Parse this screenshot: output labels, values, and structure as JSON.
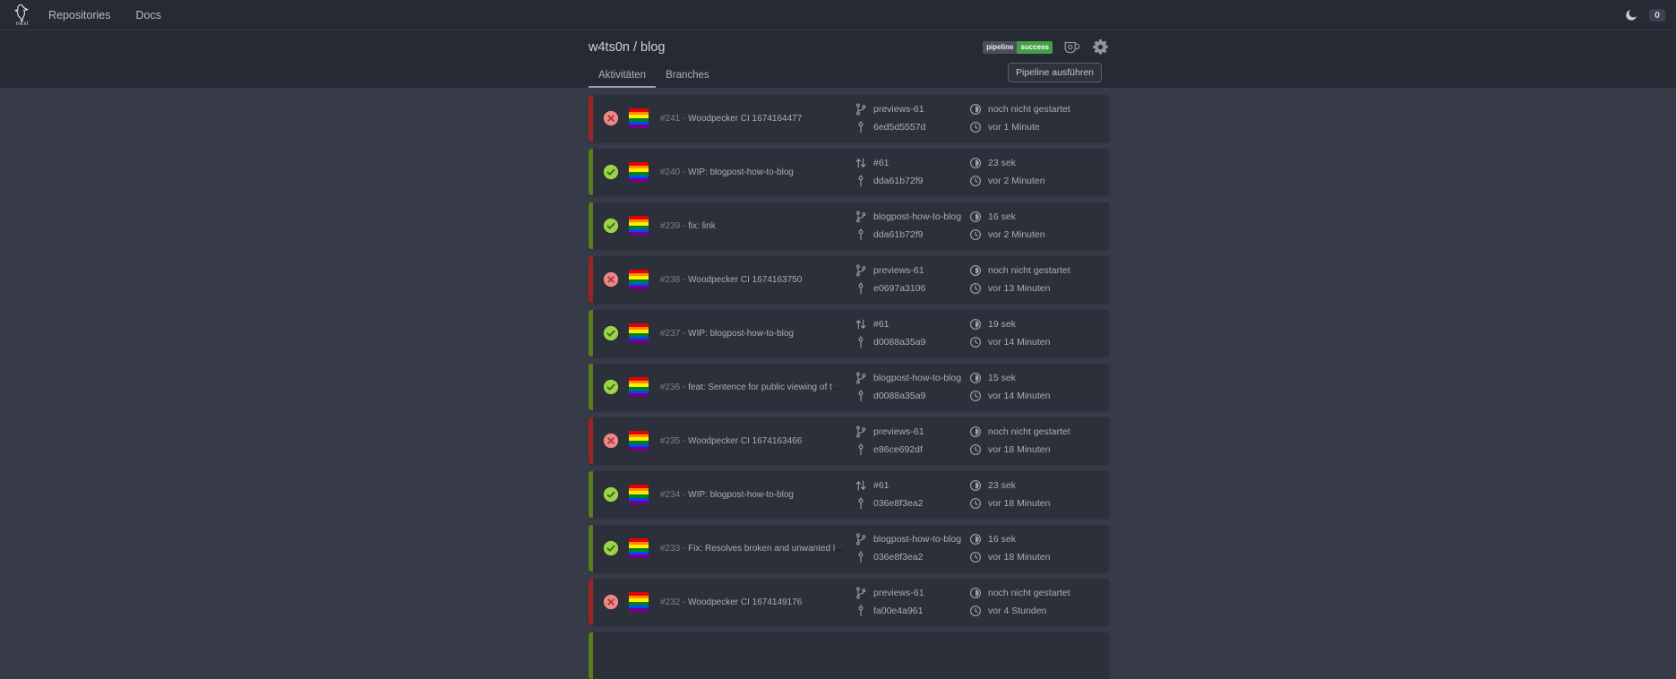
{
  "navbar": {
    "logo_caption": "next",
    "links": [
      {
        "label": "Repositories"
      },
      {
        "label": "Docs"
      }
    ],
    "notification_count": "0"
  },
  "header": {
    "repo_title": "w4ts0n / blog",
    "badge": {
      "label": "pipeline",
      "status": "success"
    },
    "tabs": [
      {
        "label": "Aktivitäten",
        "active": true
      },
      {
        "label": "Branches",
        "active": false
      }
    ],
    "run_button": "Pipeline ausführen"
  },
  "list": {
    "separator": "-"
  },
  "flag_colors": [
    "#e40303",
    "#ff8c00",
    "#ffed00",
    "#008026",
    "#0048ff",
    "#770088"
  ],
  "colors": {
    "navbar_bg": "#262a35",
    "header_bg": "#262a35",
    "content_bg": "#363b47",
    "card_bg": "#2c303b",
    "success_border": "#5a7d1e",
    "failure_border": "#9b2424",
    "success_icon_bg": "#9bd447",
    "success_icon_fg": "#3c6e15",
    "failure_icon_bg": "#ee8787",
    "failure_icon_fg": "#a73d3d",
    "badge_label_bg": "#4a4f59",
    "badge_status_bg": "#43a047",
    "accent_text": "#a8adb6",
    "muted_text": "#7a808c",
    "tab_underline": "#95a1a9"
  },
  "pipelines": [
    {
      "number": "#241",
      "status": "failure",
      "message": "Woodpecker CI 1674164477",
      "ref": "previews-61",
      "ref_type": "branch",
      "commit": "6ed5d5557d",
      "duration": "noch nicht gestartet",
      "time": "vor 1 Minute"
    },
    {
      "number": "#240",
      "status": "success",
      "message": "WIP: blogpost-how-to-blog",
      "ref": "#61",
      "ref_type": "pull_request",
      "commit": "dda61b72f9",
      "duration": "23 sek",
      "time": "vor 2 Minuten"
    },
    {
      "number": "#239",
      "status": "success",
      "message": "fix: link",
      "ref": "blogpost-how-to-blog",
      "ref_type": "branch",
      "commit": "dda61b72f9",
      "duration": "16 sek",
      "time": "vor 2 Minuten"
    },
    {
      "number": "#238",
      "status": "failure",
      "message": "Woodpecker CI 1674163750",
      "ref": "previews-61",
      "ref_type": "branch",
      "commit": "e0697a3106",
      "duration": "noch nicht gestartet",
      "time": "vor 13 Minuten"
    },
    {
      "number": "#237",
      "status": "success",
      "message": "WIP: blogpost-how-to-blog",
      "ref": "#61",
      "ref_type": "pull_request",
      "commit": "d0088a35a9",
      "duration": "19 sek",
      "time": "vor 14 Minuten"
    },
    {
      "number": "#236",
      "status": "success",
      "message": "feat: Sentence for public viewing of the change history",
      "ref": "blogpost-how-to-blog",
      "ref_type": "branch",
      "commit": "d0088a35a9",
      "duration": "15 sek",
      "time": "vor 14 Minuten"
    },
    {
      "number": "#235",
      "status": "failure",
      "message": "Woodpecker CI 1674163466",
      "ref": "previews-61",
      "ref_type": "branch",
      "commit": "e86ce692df",
      "duration": "noch nicht gestartet",
      "time": "vor 18 Minuten"
    },
    {
      "number": "#234",
      "status": "success",
      "message": "WIP: blogpost-how-to-blog",
      "ref": "#61",
      "ref_type": "pull_request",
      "commit": "036e8f3ea2",
      "duration": "23 sek",
      "time": "vor 18 Minuten"
    },
    {
      "number": "#233",
      "status": "success",
      "message": "Fix: Resolves broken and unwanted links Solves https://cod...",
      "ref": "blogpost-how-to-blog",
      "ref_type": "branch",
      "commit": "036e8f3ea2",
      "duration": "16 sek",
      "time": "vor 18 Minuten"
    },
    {
      "number": "#232",
      "status": "failure",
      "message": "Woodpecker CI 1674149176",
      "ref": "previews-61",
      "ref_type": "branch",
      "commit": "fa00e4a961",
      "duration": "noch nicht gestartet",
      "time": "vor 4 Stunden"
    },
    {
      "status": "success",
      "partial": true
    }
  ]
}
